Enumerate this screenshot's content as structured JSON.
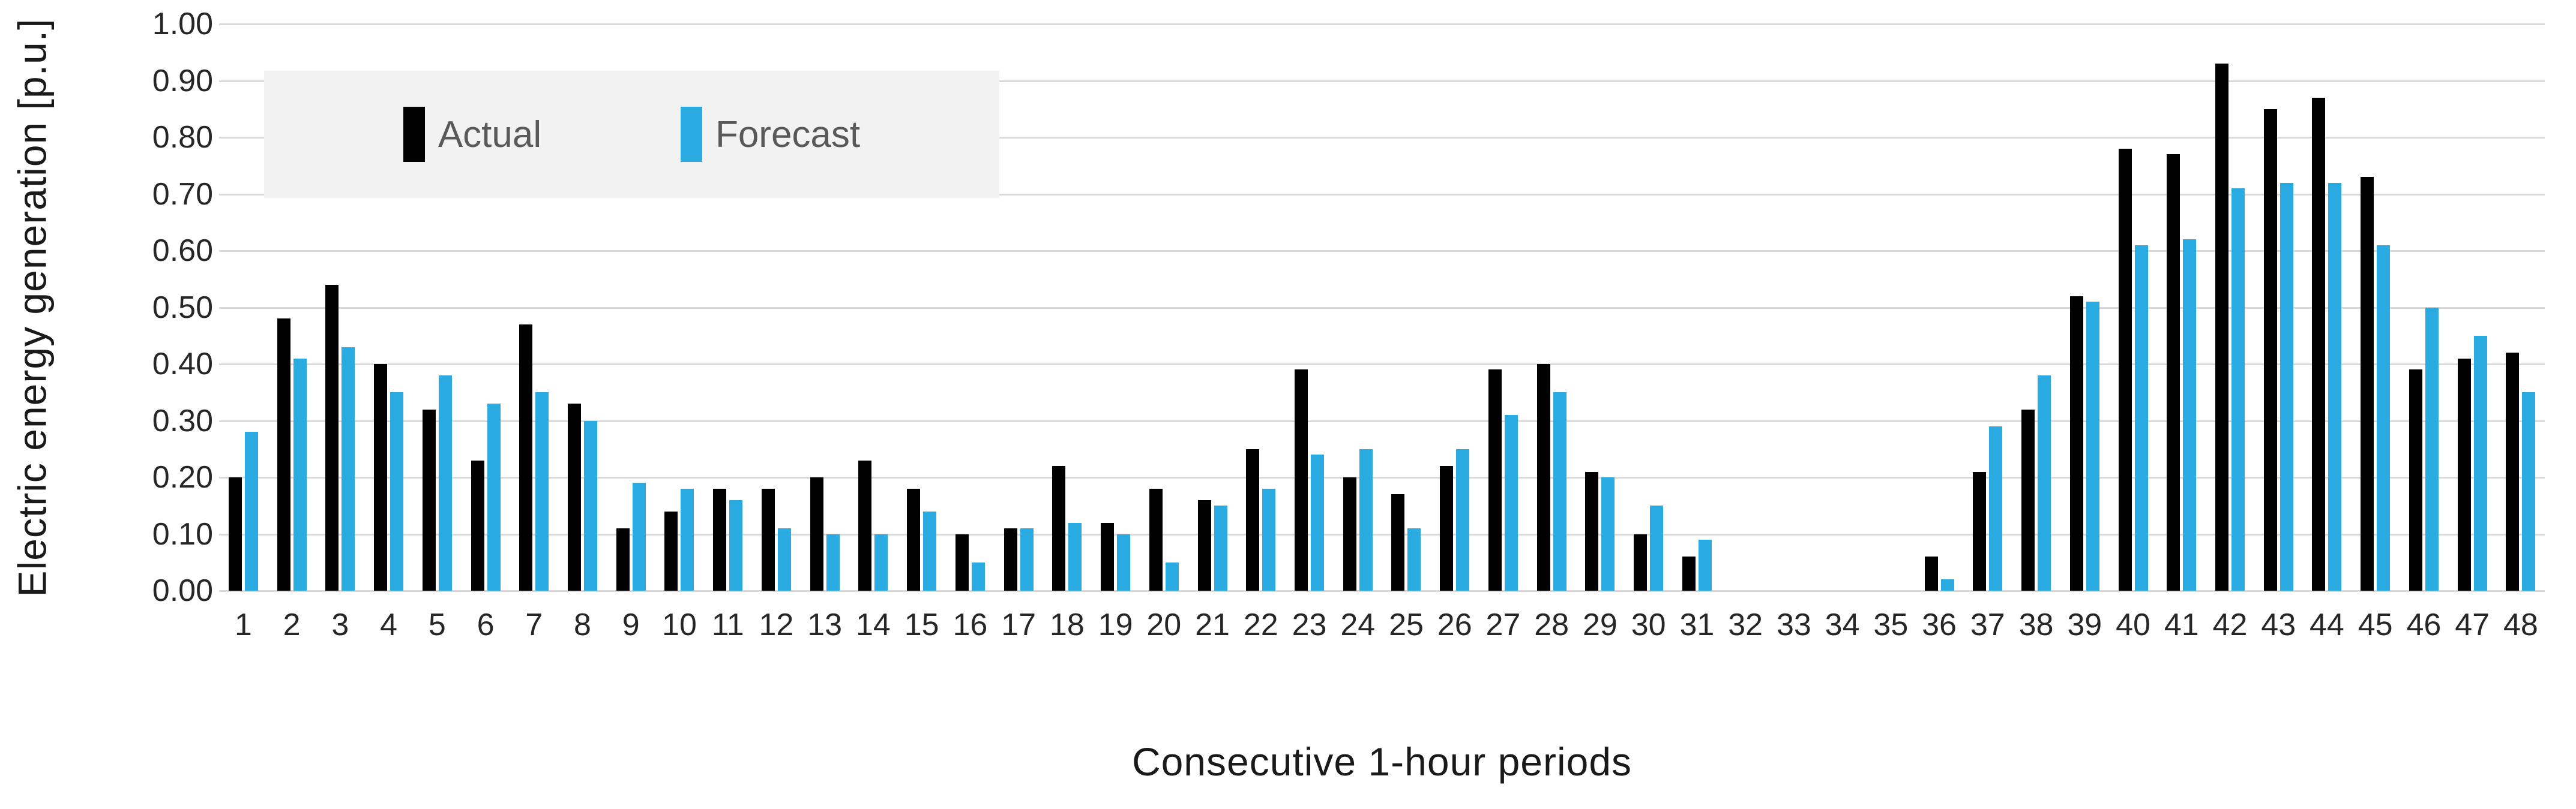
{
  "chart_data": {
    "type": "bar",
    "title": "",
    "xlabel": "Consecutive 1-hour periods",
    "ylabel": "Electric energy generation [p.u.]",
    "categories": [
      "1",
      "2",
      "3",
      "4",
      "5",
      "6",
      "7",
      "8",
      "9",
      "10",
      "11",
      "12",
      "13",
      "14",
      "15",
      "16",
      "17",
      "18",
      "19",
      "20",
      "21",
      "22",
      "23",
      "24",
      "25",
      "26",
      "27",
      "28",
      "29",
      "30",
      "31",
      "32",
      "33",
      "34",
      "35",
      "36",
      "37",
      "38",
      "39",
      "40",
      "41",
      "42",
      "43",
      "44",
      "45",
      "46",
      "47",
      "48"
    ],
    "series": [
      {
        "name": "Actual",
        "color": "#000000",
        "values": [
          0.2,
          0.48,
          0.54,
          0.4,
          0.32,
          0.23,
          0.47,
          0.33,
          0.11,
          0.14,
          0.18,
          0.18,
          0.2,
          0.23,
          0.18,
          0.1,
          0.11,
          0.22,
          0.12,
          0.18,
          0.16,
          0.25,
          0.39,
          0.2,
          0.17,
          0.22,
          0.39,
          0.4,
          0.21,
          0.1,
          0.06,
          0,
          0,
          0,
          0,
          0.06,
          0.21,
          0.32,
          0.52,
          0.78,
          0.77,
          0.93,
          0.85,
          0.87,
          0.73,
          0.39,
          0.41,
          0.42
        ]
      },
      {
        "name": "Forecast",
        "color": "#29abe2",
        "values": [
          0.28,
          0.41,
          0.43,
          0.35,
          0.38,
          0.33,
          0.35,
          0.3,
          0.19,
          0.18,
          0.16,
          0.11,
          0.1,
          0.1,
          0.14,
          0.05,
          0.11,
          0.12,
          0.1,
          0.05,
          0.15,
          0.18,
          0.24,
          0.25,
          0.11,
          0.25,
          0.31,
          0.35,
          0.2,
          0.15,
          0.09,
          0,
          0,
          0,
          0,
          0.02,
          0.29,
          0.38,
          0.51,
          0.61,
          0.62,
          0.71,
          0.72,
          0.72,
          0.61,
          0.5,
          0.45,
          0.35
        ]
      }
    ],
    "ylim": [
      0,
      1.0
    ],
    "ytick_labels": [
      "0.00",
      "0.10",
      "0.20",
      "0.30",
      "0.40",
      "0.50",
      "0.60",
      "0.70",
      "0.80",
      "0.90",
      "1.00"
    ],
    "grid": true,
    "legend_position": "top-left"
  },
  "colors": {
    "gridline": "#d9d9d9",
    "legend_background": "#f2f2f2",
    "tick_text": "#262626",
    "legend_text": "#595959",
    "axis_title_text": "#1a1a1a"
  }
}
